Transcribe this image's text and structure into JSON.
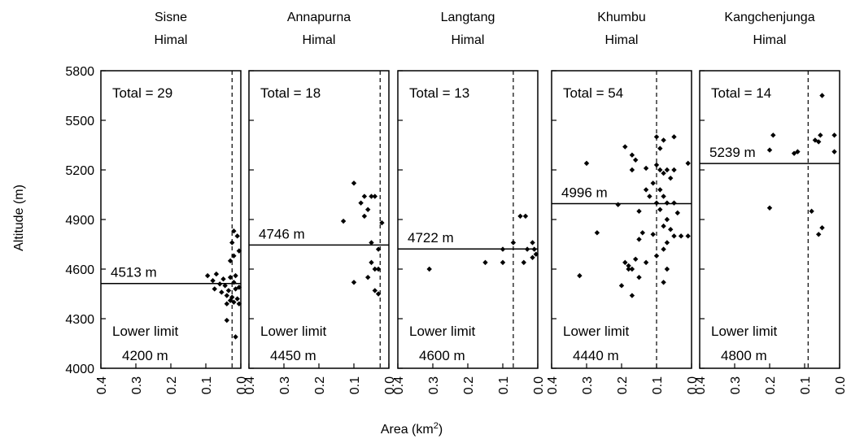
{
  "figure": {
    "ylabel": "Altitude (m)",
    "xlabel": "Area (km",
    "xlabel_sup": "2",
    "xlabel_close": ")"
  },
  "chart_data": [
    {
      "type": "scatter",
      "title_line1": "Sisne",
      "title_line2": "Himal",
      "total_text": "Total = 29",
      "mean_label": "4513 m",
      "mean_altitude": 4513,
      "lower_limit_line1": "Lower limit",
      "lower_limit_line2": "4200 m",
      "lower_limit_altitude": 4200,
      "dashed_x": 0.025,
      "xlim": [
        0.4,
        0.0
      ],
      "ylim": [
        4000,
        5800
      ],
      "x_ticks": [
        "0.4",
        "0.3",
        "0.2",
        "0.1",
        "0.0"
      ],
      "y_ticks": [
        "5800",
        "5500",
        "5200",
        "4900",
        "4600",
        "4300",
        "4000"
      ],
      "points": [
        [
          0.02,
          4830
        ],
        [
          0.01,
          4800
        ],
        [
          0.025,
          4760
        ],
        [
          0.005,
          4710
        ],
        [
          0.02,
          4680
        ],
        [
          0.03,
          4650
        ],
        [
          0.095,
          4560
        ],
        [
          0.07,
          4570
        ],
        [
          0.08,
          4530
        ],
        [
          0.05,
          4540
        ],
        [
          0.03,
          4550
        ],
        [
          0.015,
          4560
        ],
        [
          0.06,
          4510
        ],
        [
          0.045,
          4500
        ],
        [
          0.02,
          4520
        ],
        [
          0.005,
          4490
        ],
        [
          0.075,
          4480
        ],
        [
          0.055,
          4460
        ],
        [
          0.035,
          4470
        ],
        [
          0.015,
          4480
        ],
        [
          0.04,
          4440
        ],
        [
          0.025,
          4430
        ],
        [
          0.01,
          4420
        ],
        [
          0.03,
          4410
        ],
        [
          0.02,
          4400
        ],
        [
          0.005,
          4390
        ],
        [
          0.04,
          4390
        ],
        [
          0.04,
          4290
        ],
        [
          0.015,
          4190
        ]
      ]
    },
    {
      "type": "scatter",
      "title_line1": "Annapurna",
      "title_line2": "Himal",
      "total_text": "Total = 18",
      "mean_label": "4746 m",
      "mean_altitude": 4746,
      "lower_limit_line1": "Lower limit",
      "lower_limit_line2": "4450 m",
      "lower_limit_altitude": 4450,
      "dashed_x": 0.025,
      "xlim": [
        0.4,
        0.0
      ],
      "ylim": [
        4000,
        5800
      ],
      "x_ticks": [
        "0.4",
        "0.3",
        "0.2",
        "0.1",
        "0.0"
      ],
      "y_ticks": [],
      "points": [
        [
          0.1,
          5120
        ],
        [
          0.07,
          5040
        ],
        [
          0.05,
          5040
        ],
        [
          0.04,
          5040
        ],
        [
          0.08,
          5000
        ],
        [
          0.06,
          4960
        ],
        [
          0.07,
          4920
        ],
        [
          0.13,
          4890
        ],
        [
          0.02,
          4880
        ],
        [
          0.05,
          4760
        ],
        [
          0.03,
          4720
        ],
        [
          0.05,
          4640
        ],
        [
          0.04,
          4600
        ],
        [
          0.03,
          4600
        ],
        [
          0.06,
          4550
        ],
        [
          0.1,
          4520
        ],
        [
          0.04,
          4470
        ],
        [
          0.03,
          4450
        ]
      ]
    },
    {
      "type": "scatter",
      "title_line1": "Langtang",
      "title_line2": "Himal",
      "total_text": "Total = 13",
      "mean_label": "4722 m",
      "mean_altitude": 4722,
      "lower_limit_line1": "Lower limit",
      "lower_limit_line2": "4600 m",
      "lower_limit_altitude": 4600,
      "dashed_x": 0.07,
      "xlim": [
        0.4,
        0.0
      ],
      "ylim": [
        4000,
        5800
      ],
      "x_ticks": [
        "0.4",
        "0.3",
        "0.2",
        "0.1",
        "0.0"
      ],
      "y_ticks": [],
      "points": [
        [
          0.05,
          4920
        ],
        [
          0.035,
          4920
        ],
        [
          0.07,
          4760
        ],
        [
          0.015,
          4760
        ],
        [
          0.03,
          4720
        ],
        [
          0.01,
          4720
        ],
        [
          0.005,
          4690
        ],
        [
          0.1,
          4720
        ],
        [
          0.015,
          4670
        ],
        [
          0.04,
          4640
        ],
        [
          0.1,
          4640
        ],
        [
          0.15,
          4640
        ],
        [
          0.31,
          4600
        ]
      ]
    },
    {
      "type": "scatter",
      "title_line1": "Khumbu",
      "title_line2": "Himal",
      "total_text": "Total = 54",
      "mean_label": "4996 m",
      "mean_altitude": 4996,
      "lower_limit_line1": "Lower limit",
      "lower_limit_line2": "4440 m",
      "lower_limit_altitude": 4440,
      "dashed_x": 0.1,
      "xlim": [
        0.4,
        0.0
      ],
      "ylim": [
        4000,
        5800
      ],
      "x_ticks": [
        "0.4",
        "0.3",
        "0.2",
        "0.1",
        "0.0"
      ],
      "y_ticks": [],
      "points": [
        [
          0.1,
          5400
        ],
        [
          0.08,
          5380
        ],
        [
          0.05,
          5400
        ],
        [
          0.19,
          5340
        ],
        [
          0.09,
          5330
        ],
        [
          0.17,
          5290
        ],
        [
          0.16,
          5260
        ],
        [
          0.3,
          5240
        ],
        [
          0.01,
          5240
        ],
        [
          0.1,
          5230
        ],
        [
          0.07,
          5200
        ],
        [
          0.09,
          5200
        ],
        [
          0.05,
          5200
        ],
        [
          0.13,
          5210
        ],
        [
          0.17,
          5200
        ],
        [
          0.08,
          5180
        ],
        [
          0.06,
          5150
        ],
        [
          0.11,
          5120
        ],
        [
          0.09,
          5080
        ],
        [
          0.13,
          5080
        ],
        [
          0.12,
          5040
        ],
        [
          0.08,
          5040
        ],
        [
          0.1,
          5000
        ],
        [
          0.07,
          5000
        ],
        [
          0.05,
          5000
        ],
        [
          0.21,
          4990
        ],
        [
          0.09,
          4960
        ],
        [
          0.15,
          4950
        ],
        [
          0.04,
          4940
        ],
        [
          0.07,
          4900
        ],
        [
          0.08,
          4860
        ],
        [
          0.06,
          4840
        ],
        [
          0.03,
          4800
        ],
        [
          0.11,
          4810
        ],
        [
          0.05,
          4800
        ],
        [
          0.01,
          4800
        ],
        [
          0.14,
          4820
        ],
        [
          0.27,
          4820
        ],
        [
          0.07,
          4760
        ],
        [
          0.15,
          4780
        ],
        [
          0.08,
          4720
        ],
        [
          0.1,
          4680
        ],
        [
          0.16,
          4660
        ],
        [
          0.19,
          4640
        ],
        [
          0.18,
          4620
        ],
        [
          0.13,
          4640
        ],
        [
          0.07,
          4600
        ],
        [
          0.18,
          4600
        ],
        [
          0.17,
          4600
        ],
        [
          0.32,
          4560
        ],
        [
          0.15,
          4550
        ],
        [
          0.08,
          4520
        ],
        [
          0.2,
          4500
        ],
        [
          0.17,
          4440
        ]
      ]
    },
    {
      "type": "scatter",
      "title_line1": "Kangchenjunga",
      "title_line2": "Himal",
      "total_text": "Total = 14",
      "mean_label": "5239 m",
      "mean_altitude": 5239,
      "lower_limit_line1": "Lower limit",
      "lower_limit_line2": "4800 m",
      "lower_limit_altitude": 4800,
      "dashed_x": 0.09,
      "xlim": [
        0.4,
        0.0
      ],
      "ylim": [
        4000,
        5800
      ],
      "x_ticks": [
        "0.4",
        "0.3",
        "0.2",
        "0.1",
        "0.0"
      ],
      "y_ticks": [],
      "points": [
        [
          0.05,
          5650
        ],
        [
          0.19,
          5410
        ],
        [
          0.055,
          5410
        ],
        [
          0.015,
          5410
        ],
        [
          0.07,
          5380
        ],
        [
          0.06,
          5370
        ],
        [
          0.2,
          5320
        ],
        [
          0.12,
          5310
        ],
        [
          0.015,
          5310
        ],
        [
          0.13,
          5300
        ],
        [
          0.2,
          4970
        ],
        [
          0.08,
          4950
        ],
        [
          0.05,
          4850
        ],
        [
          0.06,
          4810
        ]
      ]
    }
  ]
}
